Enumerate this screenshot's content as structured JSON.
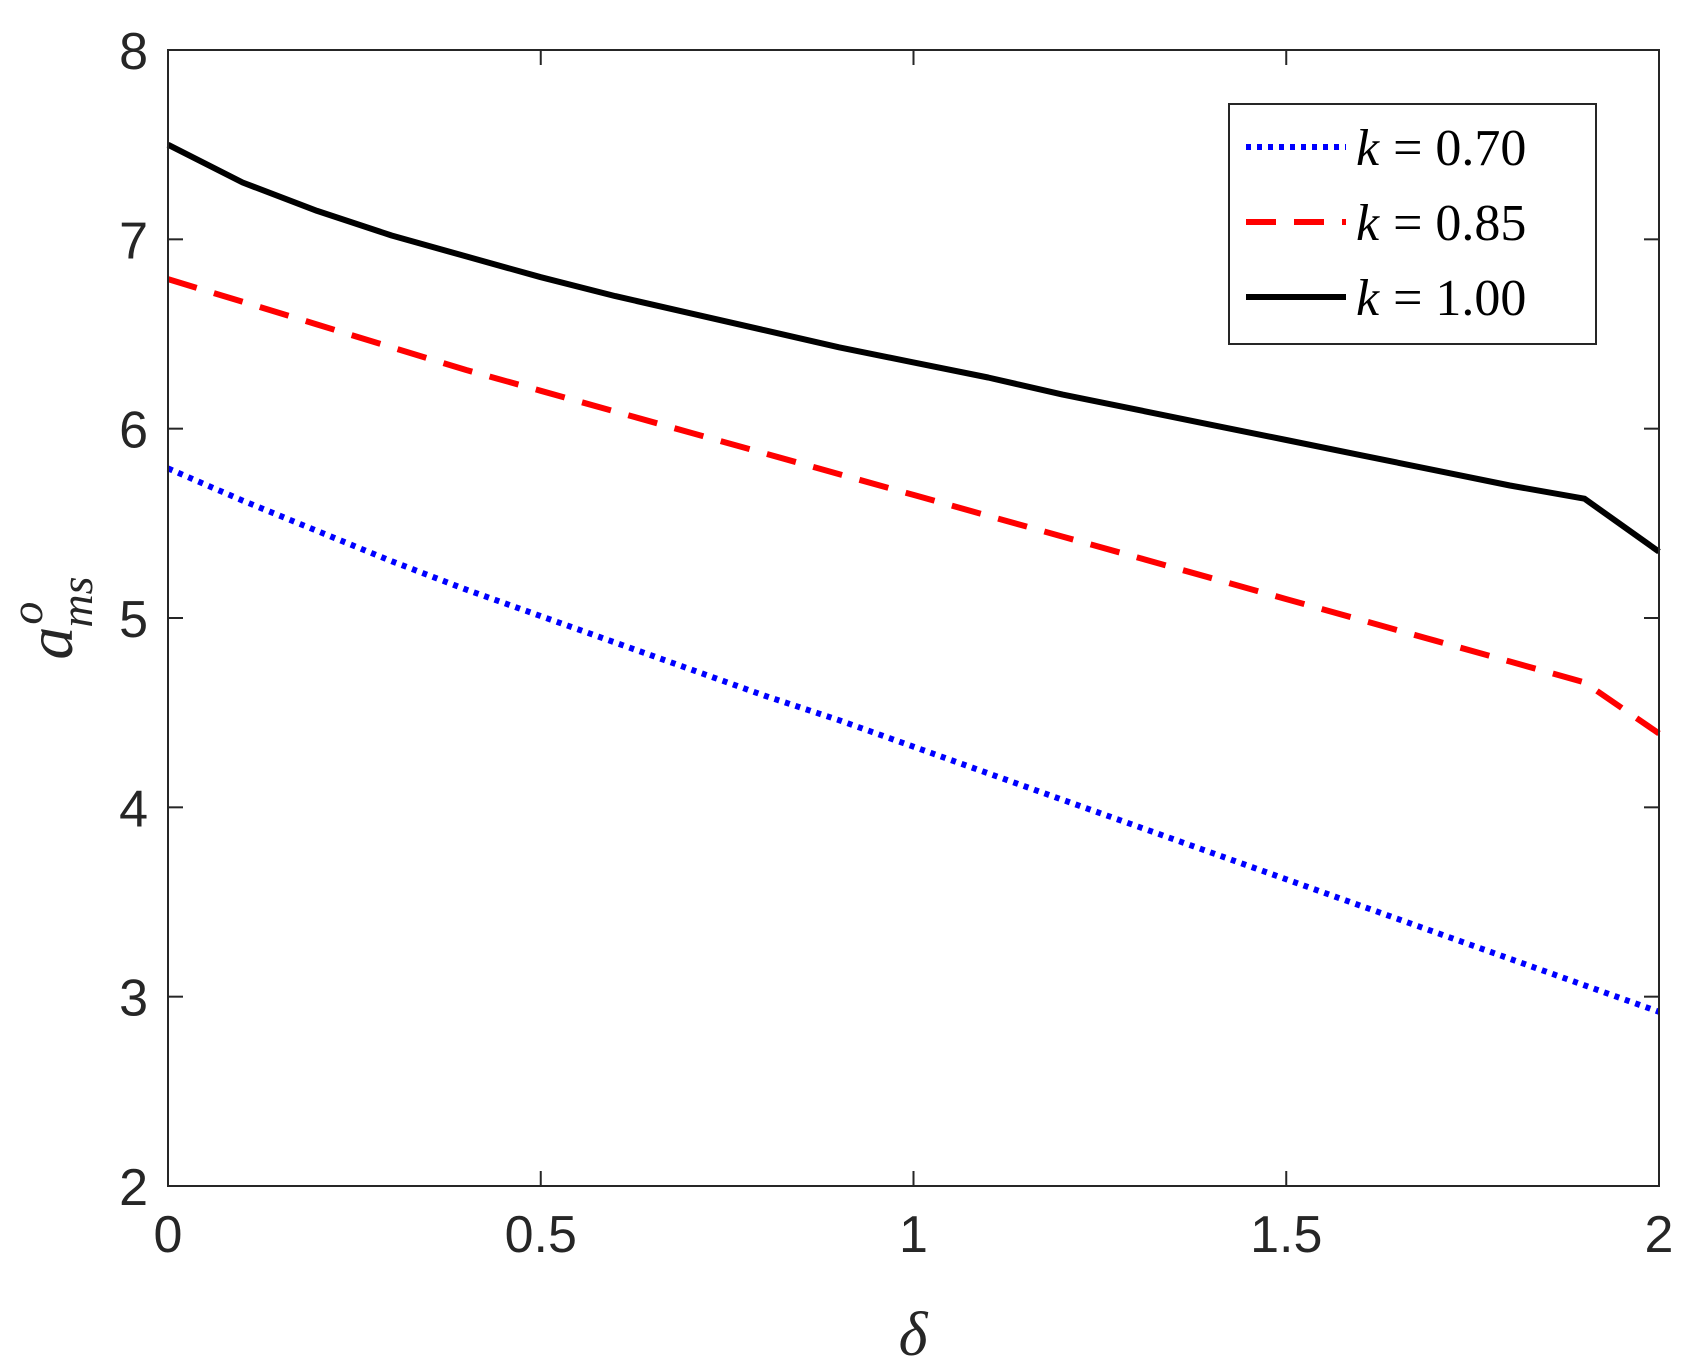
{
  "chart_data": {
    "type": "line",
    "title": "",
    "xlabel": "δ",
    "ylabel": {
      "base": "a",
      "superscript": "o",
      "subscript": "ms"
    },
    "xlim": [
      0,
      2
    ],
    "ylim": [
      2,
      8
    ],
    "xticks": [
      0,
      0.5,
      1,
      1.5,
      2
    ],
    "xtick_labels": [
      "0",
      "0.5",
      "1",
      "1.5",
      "2"
    ],
    "yticks": [
      2,
      3,
      4,
      5,
      6,
      7,
      8
    ],
    "ytick_labels": [
      "2",
      "3",
      "4",
      "5",
      "6",
      "7",
      "8"
    ],
    "grid": false,
    "legend_position": "top-right",
    "x": [
      0,
      0.1,
      0.2,
      0.3,
      0.4,
      0.5,
      0.6,
      0.7,
      0.8,
      0.9,
      1.0,
      1.1,
      1.2,
      1.3,
      1.4,
      1.5,
      1.6,
      1.7,
      1.8,
      1.9,
      2.0
    ],
    "series": [
      {
        "name": "k = 0.70",
        "legend_var": "k",
        "legend_value": "= 0.70",
        "style": "dotted",
        "color": "#0000ff",
        "values": [
          5.79,
          5.62,
          5.46,
          5.3,
          5.15,
          5.01,
          4.87,
          4.73,
          4.59,
          4.46,
          4.32,
          4.18,
          4.04,
          3.9,
          3.76,
          3.62,
          3.48,
          3.34,
          3.2,
          3.06,
          2.92
        ]
      },
      {
        "name": "k = 0.85",
        "legend_var": "k",
        "legend_value": "= 0.85",
        "style": "dashed",
        "color": "#ff0000",
        "values": [
          6.79,
          6.67,
          6.55,
          6.43,
          6.31,
          6.2,
          6.09,
          5.98,
          5.87,
          5.76,
          5.65,
          5.54,
          5.43,
          5.32,
          5.21,
          5.1,
          4.99,
          4.88,
          4.77,
          4.66,
          4.39
        ]
      },
      {
        "name": "k = 1.00",
        "legend_var": "k",
        "legend_value": "= 1.00",
        "style": "solid",
        "color": "#000000",
        "values": [
          7.5,
          7.3,
          7.15,
          7.02,
          6.91,
          6.8,
          6.7,
          6.61,
          6.52,
          6.43,
          6.35,
          6.27,
          6.18,
          6.1,
          6.02,
          5.94,
          5.86,
          5.78,
          5.7,
          5.63,
          5.35
        ]
      }
    ]
  }
}
